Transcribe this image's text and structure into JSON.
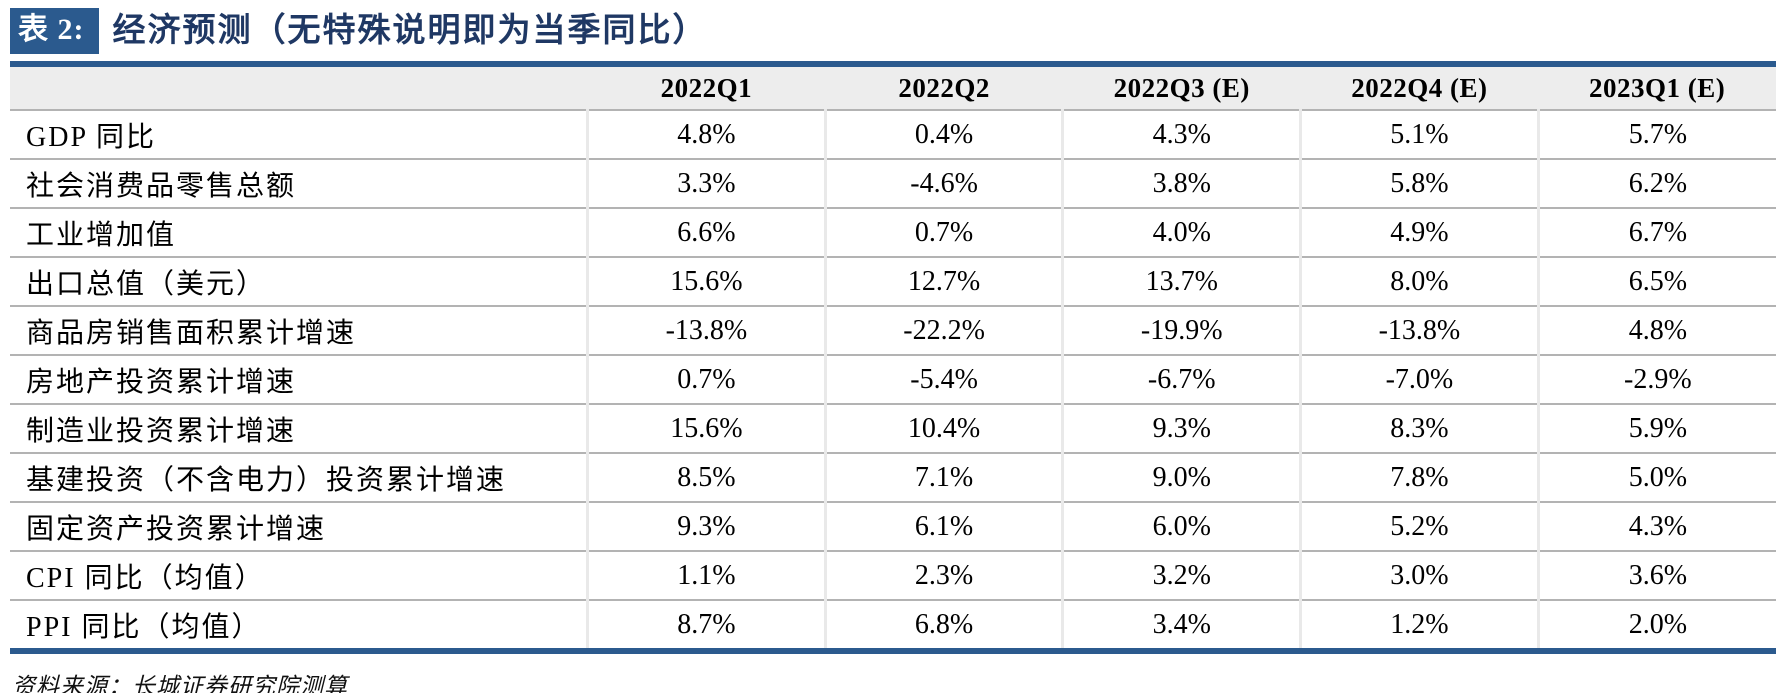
{
  "title": {
    "tag": "表 2:",
    "text": "经济预测（无特殊说明即为当季同比）"
  },
  "colors": {
    "accent_blue": "#2b5a8e",
    "title_navy": "#1f3864",
    "header_bg": "#ededed",
    "row_line": "#b3b3b3",
    "col_line": "#e9e9e9"
  },
  "chart_data": {
    "type": "table",
    "title": "经济预测（无特殊说明即为当季同比）",
    "columns": [
      "",
      "2022Q1",
      "2022Q2",
      "2022Q3 (E)",
      "2022Q4 (E)",
      "2023Q1 (E)"
    ],
    "rows": [
      {
        "label": "GDP 同比",
        "values": [
          "4.8%",
          "0.4%",
          "4.3%",
          "5.1%",
          "5.7%"
        ]
      },
      {
        "label": "社会消费品零售总额",
        "values": [
          "3.3%",
          "-4.6%",
          "3.8%",
          "5.8%",
          "6.2%"
        ]
      },
      {
        "label": "工业增加值",
        "values": [
          "6.6%",
          "0.7%",
          "4.0%",
          "4.9%",
          "6.7%"
        ]
      },
      {
        "label": "出口总值（美元）",
        "values": [
          "15.6%",
          "12.7%",
          "13.7%",
          "8.0%",
          "6.5%"
        ]
      },
      {
        "label": "商品房销售面积累计增速",
        "values": [
          "-13.8%",
          "-22.2%",
          "-19.9%",
          "-13.8%",
          "4.8%"
        ]
      },
      {
        "label": "房地产投资累计增速",
        "values": [
          "0.7%",
          "-5.4%",
          "-6.7%",
          "-7.0%",
          "-2.9%"
        ]
      },
      {
        "label": "制造业投资累计增速",
        "values": [
          "15.6%",
          "10.4%",
          "9.3%",
          "8.3%",
          "5.9%"
        ]
      },
      {
        "label": "基建投资（不含电力）投资累计增速",
        "values": [
          "8.5%",
          "7.1%",
          "9.0%",
          "7.8%",
          "5.0%"
        ]
      },
      {
        "label": "固定资产投资累计增速",
        "values": [
          "9.3%",
          "6.1%",
          "6.0%",
          "5.2%",
          "4.3%"
        ]
      },
      {
        "label": "CPI 同比（均值）",
        "values": [
          "1.1%",
          "2.3%",
          "3.2%",
          "3.0%",
          "3.6%"
        ]
      },
      {
        "label": "PPI 同比（均值）",
        "values": [
          "8.7%",
          "6.8%",
          "3.4%",
          "1.2%",
          "2.0%"
        ]
      }
    ]
  },
  "source": "资料来源：长城证券研究院测算"
}
